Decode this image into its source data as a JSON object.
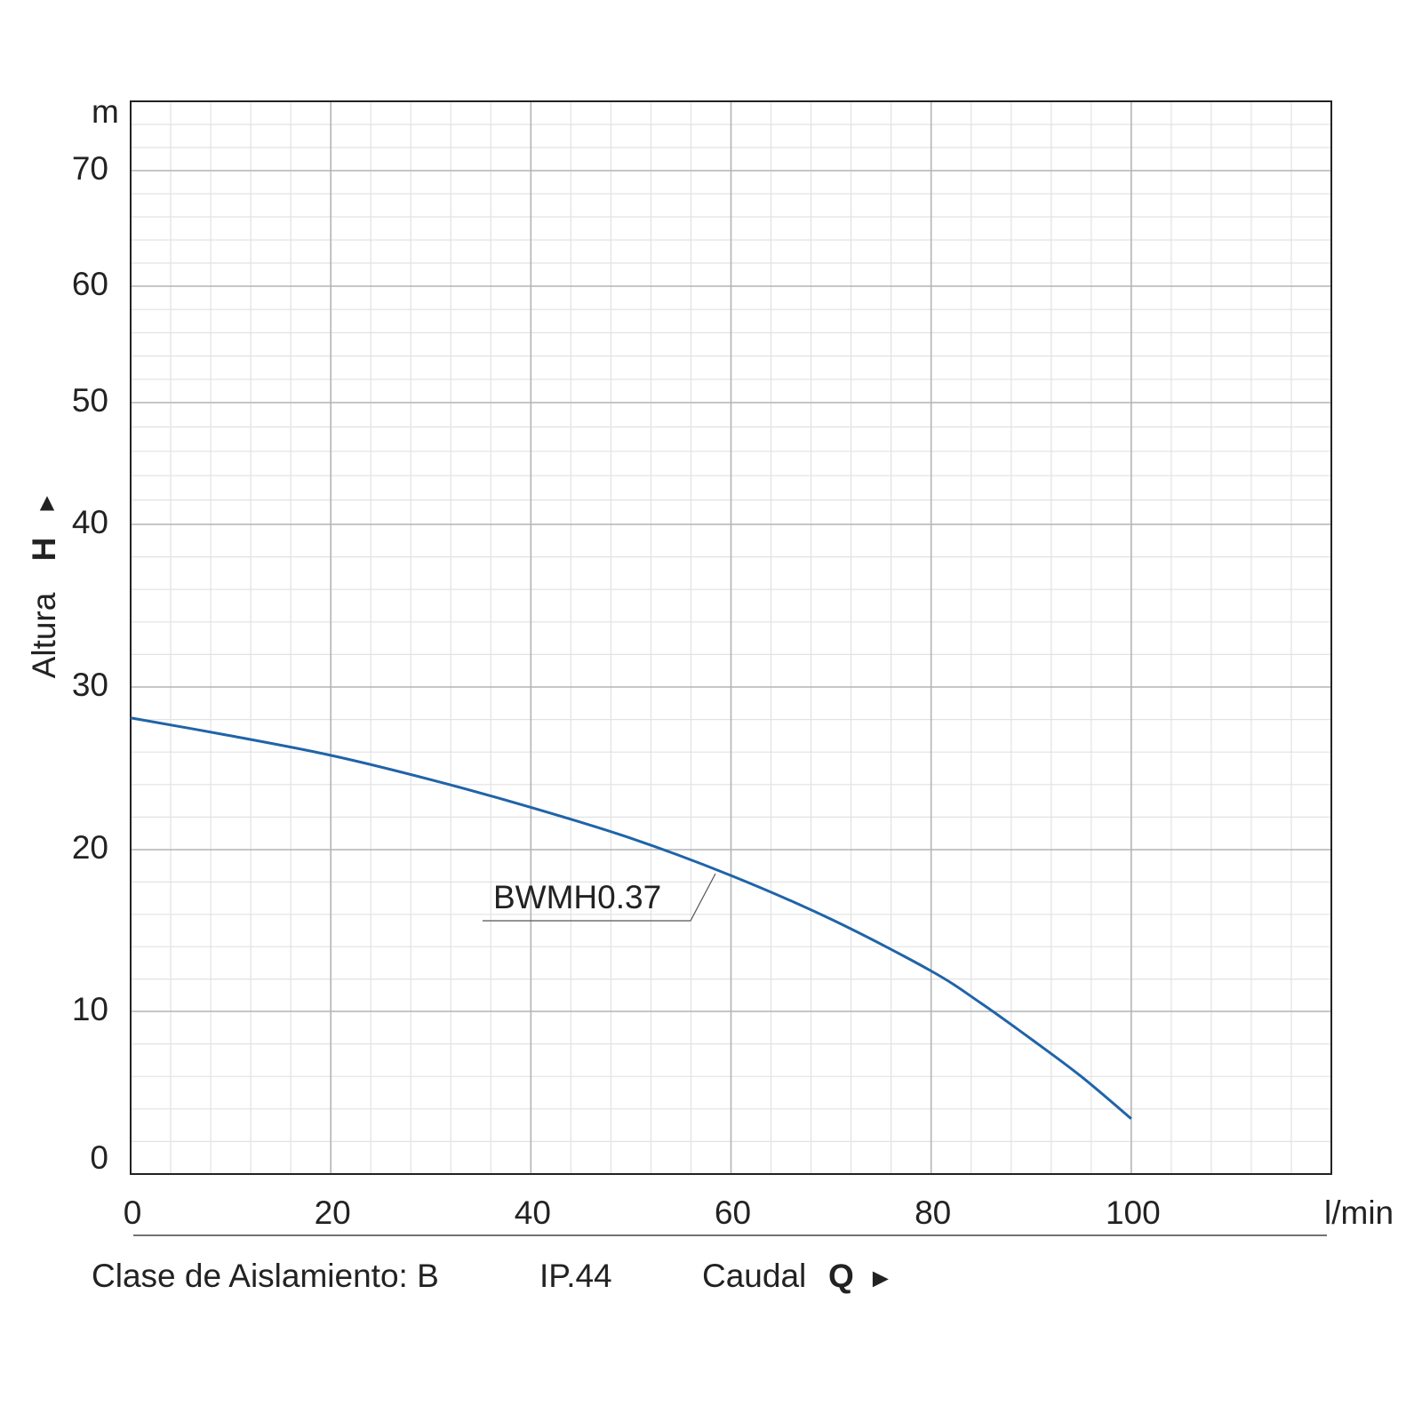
{
  "chart_data": {
    "type": "line",
    "x": [
      0,
      10,
      20,
      30,
      40,
      50,
      60,
      70,
      80,
      85,
      90,
      95,
      100
    ],
    "series": [
      {
        "name": "BWMH0.37",
        "color": "#1f64a8",
        "values": [
          28.1,
          27.0,
          25.8,
          24.3,
          22.6,
          20.7,
          18.4,
          15.7,
          12.5,
          10.5,
          8.3,
          6.0,
          3.4
        ]
      }
    ],
    "xlim": [
      0,
      120
    ],
    "ylim": [
      0,
      76
    ],
    "xticks": [
      0,
      20,
      40,
      60,
      80,
      100
    ],
    "yticks": [
      0,
      10,
      20,
      30,
      40,
      50,
      60,
      70
    ],
    "grid": true,
    "x_unit": "l/min",
    "y_unit": "m",
    "xlabel": "Caudal",
    "xlabel_symbol": "Q",
    "xlabel_arrow": "►",
    "ylabel": "Altura",
    "ylabel_symbol": "H",
    "ylabel_arrow": "▲",
    "notes": [
      "Clase de Aislamiento: B",
      "IP.44"
    ]
  }
}
